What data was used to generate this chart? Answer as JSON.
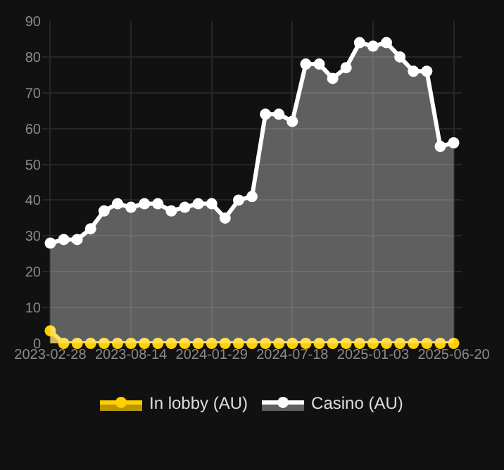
{
  "chart_data": {
    "type": "area",
    "categories": [
      "2023-02-28",
      null,
      null,
      null,
      null,
      null,
      "2023-08-14",
      null,
      null,
      null,
      null,
      null,
      "2024-01-29",
      null,
      null,
      null,
      null,
      null,
      "2024-07-18",
      null,
      null,
      null,
      null,
      null,
      "2025-01-03",
      null,
      null,
      null,
      null,
      null,
      "2025-06-20"
    ],
    "series": [
      {
        "name": "In lobby (AU)",
        "color": "#ffd000",
        "values": [
          3.5,
          0,
          0,
          0,
          0,
          0,
          0,
          0,
          0,
          0,
          0,
          0,
          0,
          0,
          0,
          0,
          0,
          0,
          0,
          0,
          0,
          0,
          0,
          0,
          0,
          0,
          0,
          0,
          0,
          0,
          0
        ]
      },
      {
        "name": "Casino (AU)",
        "color": "#ffffff",
        "values": [
          28,
          29,
          29,
          32,
          37,
          39,
          38,
          39,
          39,
          37,
          38,
          39,
          39,
          35,
          40,
          41,
          64,
          64,
          62,
          78,
          78,
          74,
          77,
          84,
          83,
          84,
          80,
          76,
          76,
          55,
          56
        ]
      }
    ],
    "ylim": [
      0,
      90
    ],
    "yticks": [
      0,
      10,
      20,
      30,
      40,
      50,
      60,
      70,
      80,
      90
    ],
    "grid": true,
    "legend": "bottom",
    "marker": "circle",
    "line_style": "solid"
  }
}
